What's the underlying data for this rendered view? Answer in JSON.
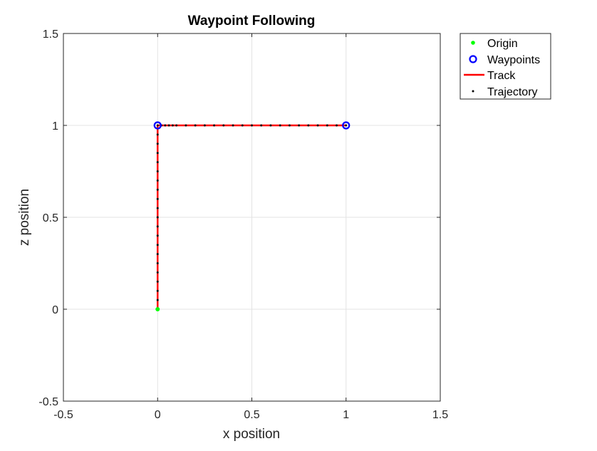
{
  "chart_data": {
    "type": "line",
    "title": "Waypoint Following",
    "xlabel": "x position",
    "ylabel": "z position",
    "xlim": [
      -0.5,
      1.5
    ],
    "ylim": [
      -0.5,
      1.5
    ],
    "xticks": [
      -0.5,
      0,
      0.5,
      1,
      1.5
    ],
    "yticks": [
      -0.5,
      0,
      0.5,
      1,
      1.5
    ],
    "xtick_labels": [
      "-0.5",
      "0",
      "0.5",
      "1",
      "1.5"
    ],
    "ytick_labels": [
      "-0.5",
      "0",
      "0.5",
      "1",
      "1.5"
    ],
    "grid": true,
    "legend_position": "outside top-right",
    "series": [
      {
        "name": "Origin",
        "style": "point",
        "color": "#00ff00",
        "x": [
          0
        ],
        "y": [
          0
        ]
      },
      {
        "name": "Waypoints",
        "style": "circle-marker",
        "color": "#0000ff",
        "x": [
          0,
          1
        ],
        "y": [
          1,
          1
        ]
      },
      {
        "name": "Track",
        "style": "line",
        "color": "#ff0000",
        "x": [
          0,
          0,
          1
        ],
        "y": [
          0,
          1,
          1
        ]
      },
      {
        "name": "Trajectory",
        "style": "dots",
        "color": "#000000",
        "x": [
          0,
          0,
          0,
          0,
          0,
          0,
          0,
          0,
          0,
          0,
          0,
          0,
          0,
          0,
          0,
          0,
          0,
          0,
          0,
          0,
          0,
          0.02,
          0.04,
          0.06,
          0.08,
          0.1,
          0.15,
          0.2,
          0.25,
          0.3,
          0.35,
          0.4,
          0.45,
          0.5,
          0.55,
          0.6,
          0.65,
          0.7,
          0.75,
          0.8,
          0.85,
          0.9,
          0.95,
          1
        ],
        "y": [
          0,
          0.05,
          0.1,
          0.15,
          0.2,
          0.25,
          0.3,
          0.35,
          0.4,
          0.45,
          0.5,
          0.55,
          0.6,
          0.65,
          0.7,
          0.75,
          0.8,
          0.85,
          0.9,
          0.95,
          1,
          1,
          1,
          1,
          1,
          1,
          1,
          1,
          1,
          1,
          1,
          1,
          1,
          1,
          1,
          1,
          1,
          1,
          1,
          1,
          1,
          1,
          1,
          1
        ]
      }
    ]
  }
}
